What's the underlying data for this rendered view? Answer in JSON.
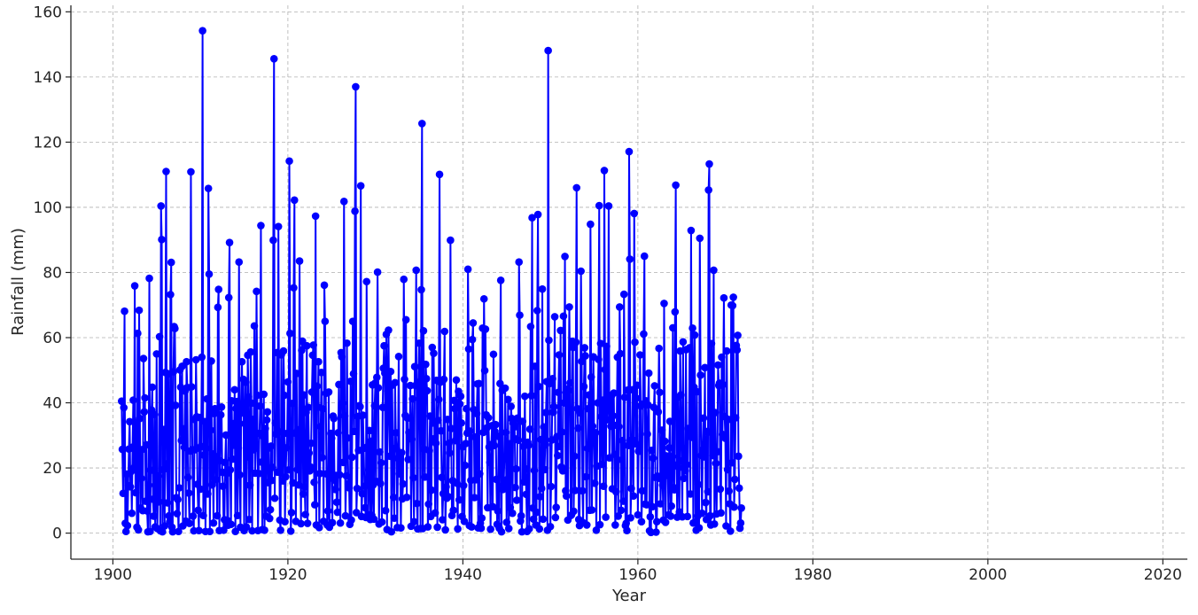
{
  "colors": {
    "series": "#0000ff",
    "grid": "#b0b0b0",
    "axis": "#262626"
  },
  "chart_data": {
    "type": "line",
    "title": "",
    "xlabel": "Year",
    "ylabel": "Rainfall (mm)",
    "xlim": [
      1895.2,
      2022.8
    ],
    "ylim": [
      -8,
      162
    ],
    "xticks": [
      1900,
      1920,
      1940,
      1960,
      1980,
      2000,
      2020
    ],
    "yticks": [
      0,
      20,
      40,
      60,
      80,
      100,
      120,
      140,
      160
    ],
    "xtick_labels": [
      "1900",
      "1920",
      "1940",
      "1960",
      "1980",
      "2000",
      "2020"
    ],
    "ytick_labels": [
      "0",
      "20",
      "40",
      "60",
      "80",
      "100",
      "120",
      "140",
      "160"
    ],
    "grid": true,
    "legend": "none",
    "marker": "circle",
    "x_start": 1901.0,
    "x_step": 0.08333,
    "series": [
      {
        "values": [
          40.5,
          25.7,
          12.2,
          38.5,
          68.1,
          3.0,
          0.5,
          18.1,
          2.3,
          14.6,
          25.8,
          34.2,
          14.2,
          18.9,
          6.1,
          26.4,
          40.8,
          20.1,
          75.9,
          12.4,
          33.8,
          1.8,
          61.3,
          1.0,
          68.4,
          35.2,
          7.7,
          16.8,
          25.6,
          6.9,
          53.6,
          37.2,
          41.5,
          9.8,
          27.1,
          6.8,
          0.4,
          14.7,
          78.2,
          0.5,
          19.3,
          37.8,
          44.8,
          10.4,
          5.2,
          36.4,
          1.9,
          13.8,
          55.0,
          1.4,
          17.5,
          9.6,
          60.3,
          0.7,
          100.4,
          90.1,
          0.4,
          19.5,
          31.8,
          2.2,
          49.3,
          111.0,
          21.3,
          9.3,
          48.9,
          5.3,
          3.5,
          73.2,
          83.1,
          1.8,
          0.4,
          49.5,
          63.4,
          62.8,
          39.2,
          10.9,
          6.0,
          10.3,
          0.5,
          13.9,
          50.1,
          44.8,
          28.4,
          51.2,
          2.2,
          32.0,
          26.3,
          43.6,
          3.7,
          52.6,
          44.7,
          17.1,
          12.3,
          3.0,
          25.2,
          110.9,
          44.9,
          25.6,
          5.2,
          0.7,
          34.9,
          25.6,
          53.2,
          35.7,
          15.0,
          7.0,
          0.8,
          35.5,
          13.5,
          26.6,
          54.0,
          154.2,
          5.4,
          23.9,
          34.2,
          0.5,
          26.0,
          41.2,
          12.0,
          105.8,
          79.5,
          0.5,
          31.6,
          52.8,
          14.8,
          24.3,
          3.1,
          36.7,
          38.2,
          16.4,
          23.4,
          5.3,
          69.3,
          74.8,
          0.8,
          22.2,
          36.3,
          38.7,
          18.7,
          14.4,
          0.9,
          4.1,
          21.7,
          30.1,
          18.2,
          3.9,
          2.4,
          72.3,
          89.2,
          19.4,
          2.7,
          40.6,
          22.7,
          33.6,
          27.0,
          44.0,
          0.5,
          38.2,
          40.4,
          5.4,
          26.1,
          83.2,
          17.9,
          1.8,
          39.1,
          52.6,
          36.9,
          47.2,
          0.8,
          33.6,
          46.3,
          1.9,
          23.4,
          54.6,
          41.8,
          4.2,
          14.7,
          55.6,
          39.9,
          0.7,
          34.9,
          25.6,
          63.6,
          18.4,
          27.0,
          74.2,
          42.3,
          0.8,
          18.3,
          30.6,
          39.0,
          94.4,
          21.8,
          1.1,
          29.7,
          42.6,
          0.9,
          32.1,
          5.2,
          34.7,
          37.2,
          15.5,
          26.1,
          4.5,
          7.2,
          26.7,
          16.2,
          20.2,
          89.9,
          145.6,
          10.7,
          33.8,
          30.4,
          55.4,
          18.7,
          94.1,
          31.1,
          4.0,
          0.9,
          54.7,
          21.4,
          16.0,
          55.9,
          42.3,
          3.5,
          17.3,
          26.2,
          30.6,
          46.4,
          19.4,
          114.2,
          61.3,
          0.6,
          6.3,
          39.8,
          15.4,
          75.3,
          102.2,
          30.7,
          3.6,
          49.0,
          19.5,
          31.7,
          14.8,
          83.5,
          29.0,
          2.9,
          56.1,
          58.9,
          12.0,
          42.4,
          14.2,
          5.7,
          37.0,
          57.5,
          3.0,
          38.6,
          24.6,
          19.1,
          20.3,
          27.6,
          43.3,
          54.6,
          57.7,
          15.6,
          8.7,
          97.3,
          2.5,
          45.1,
          38.7,
          52.6,
          1.7,
          18.3,
          32.7,
          49.3,
          23.2,
          38.1,
          3.6,
          76.1,
          65.0,
          42.9,
          18.2,
          2.5,
          6.8,
          43.3,
          1.8,
          17.6,
          30.6,
          29.1,
          3.2,
          35.9,
          35.2,
          16.3,
          13.4,
          17.7,
          9.5,
          6.4,
          30.8,
          45.6,
          17.9,
          3.1,
          55.4,
          54.1,
          39.9,
          21.7,
          101.8,
          36.0,
          5.3,
          17.6,
          58.3,
          29.2,
          15.1,
          13.9,
          2.7,
          46.6,
          4.0,
          23.3,
          65.0,
          48.9,
          31.2,
          98.8,
          137.0,
          6.3,
          13.7,
          35.8,
          25.4,
          39.1,
          38.8,
          106.6,
          5.1,
          12.1,
          36.2,
          26.0,
          14.4,
          7.8,
          4.8,
          77.2,
          26.5,
          5.7,
          19.4,
          31.5,
          4.2,
          28.2,
          5.5,
          45.5,
          14.8,
          4.3,
          39.1,
          46.1,
          15.9,
          47.8,
          80.1,
          44.6,
          2.8,
          24.9,
          15.2,
          21.6,
          3.4,
          38.6,
          50.6,
          57.5,
          49.1,
          6.9,
          61.0,
          1.1,
          43.6,
          62.3,
          35.6,
          23.6,
          49.6,
          0.4,
          45.4,
          26.0,
          11.0,
          4.6,
          46.2,
          30.8,
          25.9,
          1.7,
          23.0,
          54.2,
          18.2,
          22.6,
          1.6,
          24.7,
          10.5,
          15.1,
          77.9,
          47.2,
          36.1,
          65.5,
          11.0,
          35.3,
          22.6,
          30.9,
          29.0,
          45.3,
          2.1,
          28.8,
          41.2,
          17.0,
          3.5,
          51.1,
          45.3,
          80.7,
          9.1,
          1.3,
          46.3,
          58.3,
          35.9,
          1.4,
          74.7,
          125.7,
          1.4,
          62.1,
          25.7,
          17.2,
          51.8,
          47.4,
          43.7,
          1.9,
          8.9,
          25.3,
          35.9,
          5.1,
          13.2,
          57.0,
          33.8,
          55.2,
          29.0,
          6.2,
          27.6,
          46.9,
          1.8,
          34.6,
          41.0,
          110.1,
          46.3,
          31.4,
          17.1,
          4.1,
          12.1,
          47.2,
          61.9,
          1.0,
          14.2,
          10.7,
          34.9,
          11.2,
          27.6,
          24.6,
          89.9,
          32.1,
          5.4,
          16.1,
          7.0,
          40.7,
          38.2,
          28.4,
          47.0,
          15.3,
          1.3,
          43.5,
          10.2,
          39.6,
          42.0,
          33.8,
          5.1,
          26.5,
          14.6,
          3.6,
          20.8,
          27.5,
          38.2,
          30.7,
          81.0,
          56.5,
          2.3,
          31.3,
          16.2,
          1.9,
          59.4,
          64.5,
          37.9,
          10.9,
          29.5,
          16.4,
          36.7,
          45.8,
          1.6,
          45.9,
          18.2,
          3.0,
          1.5,
          4.6,
          62.9,
          30.9,
          71.9,
          49.9,
          62.6,
          36.3,
          32.3,
          7.8,
          35.4,
          26.4,
          21.7,
          1.2,
          27.2,
          33.0,
          8.1,
          54.9,
          26.9,
          31.2,
          33.3,
          16.5,
          2.7,
          6.8,
          29.7,
          1.5,
          45.9,
          77.6,
          0.4,
          43.8,
          13.4,
          14.8,
          22.8,
          44.5,
          30.9,
          3.3,
          16.5,
          41.0,
          1.4,
          27.4,
          7.8,
          38.9,
          35.2,
          6.1,
          33.7,
          29.1,
          32.6,
          14.0,
          19.7,
          10.1,
          35.3,
          28.5,
          83.2,
          66.9,
          3.7,
          5.3,
          0.4,
          34.3,
          26.6,
          15.7,
          42.0,
          19.7,
          11.9,
          0.5,
          27.9,
          26.9,
          1.3,
          31.9,
          63.4,
          42.2,
          96.8,
          7.7,
          4.3,
          19.2,
          51.2,
          2.5,
          6.4,
          68.3,
          97.8,
          45.0,
          1.3,
          11.2,
          28.7,
          13.7,
          74.9,
          4.3,
          32.6,
          19.5,
          27.1,
          37.0,
          46.5,
          0.9,
          148.1,
          59.2,
          45.9,
          2.0,
          14.3,
          28.6,
          47.4,
          37.1,
          38.8,
          66.4,
          4.8,
          7.9,
          29.6,
          23.8,
          43.2,
          54.7,
          26.6,
          62.2,
          20.3,
          31.0,
          19.1,
          66.6,
          40.0,
          84.9,
          13.0,
          11.4,
          44.2,
          4.0,
          43.8,
          69.4,
          46.1,
          5.4,
          5.6,
          58.9,
          57.0,
          6.7,
          23.6,
          13.1,
          58.6,
          106.0,
          38.2,
          32.2,
          4.2,
          2.3,
          36.9,
          80.4,
          52.7,
          13.0,
          3.2,
          45.0,
          56.9,
          54.4,
          17.3,
          2.5,
          26.0,
          38.2,
          42.4,
          7.0,
          94.8,
          47.9,
          7.1,
          32.8,
          54.1,
          29.5,
          15.3,
          30.8,
          0.9,
          20.6,
          40.0,
          53.3,
          100.5,
          2.6,
          58.2,
          35.7,
          21.1,
          40.8,
          14.4,
          111.3,
          50.2,
          4.9,
          57.3,
          34.8,
          39.4,
          100.4,
          23.1,
          40.5,
          32.8,
          42.2,
          13.6,
          36.0,
          43.0,
          24.2,
          2.5,
          12.7,
          33.1,
          54.0,
          5.2,
          32.7,
          69.4,
          55.1,
          7.0,
          22.5,
          28.4,
          9.8,
          73.3,
          41.7,
          2.3,
          3.0,
          0.8,
          43.9,
          26.9,
          117.1,
          84.1,
          4.7,
          13.7,
          28.7,
          44.0,
          11.4,
          98.1,
          58.6,
          27.4,
          41.4,
          45.4,
          5.6,
          25.1,
          25.8,
          54.7,
          39.0,
          3.5,
          13.0,
          39.6,
          61.1,
          85.0,
          8.9,
          40.6,
          8.7,
          30.4,
          39.3,
          49.1,
          0.7,
          5.0,
          0.2,
          25.4,
          8.1,
          23.0,
          38.6,
          45.2,
          17.1,
          0.3,
          3.5,
          17.5,
          37.2,
          56.7,
          43.2,
          9.0,
          16.6,
          31.6,
          14.7,
          4.0,
          70.5,
          28.2,
          3.3,
          23.7,
          17.7,
          21.9,
          5.6,
          26.2,
          34.3,
          5.2,
          8.3,
          23.5,
          63.0,
          14.0,
          13.3,
          67.9,
          106.8,
          20.9,
          4.9,
          41.7,
          20.1,
          6.5,
          55.9,
          42.4,
          22.2,
          5.0,
          58.7,
          16.8,
          25.4,
          19.1,
          56.3,
          21.0,
          5.1,
          32.1,
          30.0,
          56.9,
          12.0,
          92.9,
          29.4,
          62.9,
          3.1,
          44.8,
          60.8,
          3.4,
          0.9,
          43.4,
          5.2,
          14.9,
          1.6,
          90.5,
          48.5,
          23.8,
          6.1,
          25.6,
          35.3,
          23.4,
          50.8,
          9.4,
          4.2,
          31.2,
          12.7,
          105.3,
          113.3,
          5.3,
          2.5,
          58.2,
          30.5,
          23.8,
          80.7,
          2.8,
          37.0,
          21.4,
          5.9,
          25.0,
          51.6,
          45.3,
          46.0,
          13.5,
          6.2,
          54.0,
          30.3,
          45.6,
          72.2,
          35.8,
          29.1,
          2.2,
          55.9,
          19.5,
          34.9,
          12.9,
          9.0,
          0.6,
          70.0,
          21.6,
          69.8,
          72.4,
          8.0,
          16.5,
          35.4,
          57.6,
          56.2,
          60.7,
          23.6,
          13.8,
          1.5,
          3.1,
          7.7
        ]
      }
    ]
  }
}
